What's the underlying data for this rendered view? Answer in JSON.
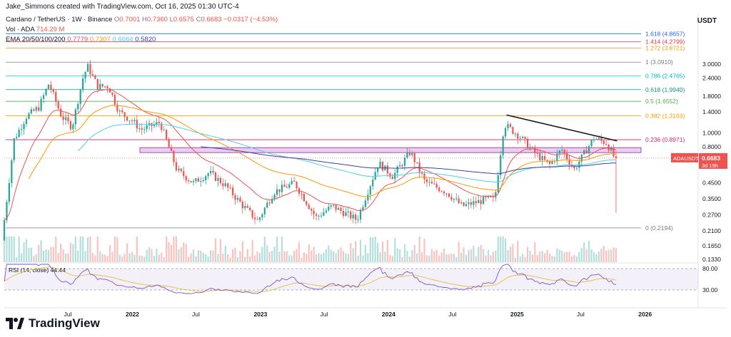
{
  "header": {
    "credit": "Jake_Simmons created with TradingView.com, Oct 16, 2025 01:30 UTC-4"
  },
  "legend": {
    "symbol": "Cardano / TetherUS · 1W · Binance",
    "open_label": "O",
    "open": "0.7001",
    "high_label": "H",
    "high": "0.7360",
    "low_label": "L",
    "low": "0.6575",
    "close_label": "C",
    "close": "0.6683",
    "change": "−0.0317 (−4.53%)",
    "vol_label": "Vol · ADA",
    "vol_value": "714.29 M",
    "ema_label": "EMA 20/50/100/200",
    "ema_values": [
      "0.7779",
      "0.7307",
      "0.6664",
      "0.5820"
    ]
  },
  "axis": {
    "currency": "USDT"
  },
  "branding": {
    "name": "TradingView"
  },
  "colors": {
    "up": "#26a69a",
    "down": "#ef5350",
    "ema20": "#ef5350",
    "ema50": "#ff9800",
    "ema100": "#4dd0e1",
    "ema200": "#3f3fa8",
    "fib0": "#787b86",
    "fib0236": "#e91e63",
    "fib0382": "#ff9800",
    "fib05": "#4caf50",
    "fib0618": "#089981",
    "fib0786": "#00bcd4",
    "fib1": "#787b86",
    "fib1272": "#ff9800",
    "fib1414": "#f23645",
    "fib1618": "#2962ff",
    "rsi": "#7e57c2",
    "rsi_ma": "#e0c040"
  },
  "chart_data": {
    "type": "candlestick",
    "y_scale": "log",
    "y_ticks": [
      "3.0000",
      "2.4000",
      "1.8000",
      "1.4000",
      "1.0000",
      "0.8000",
      "0.6000",
      "0.4500",
      "0.3500",
      "0.2700",
      "0.2100",
      "0.1650",
      "0.1330"
    ],
    "x_ticks": [
      "Jul",
      "2022",
      "Jul",
      "2023",
      "Jul",
      "2024",
      "Jul",
      "2025",
      "Jul",
      "2026"
    ],
    "fib_levels": [
      {
        "ratio": "0",
        "label": "0 (0.2194)",
        "price": 0.2194
      },
      {
        "ratio": "0.236",
        "label": "0.236 (0.8971)",
        "price": 0.8971
      },
      {
        "ratio": "0.382",
        "label": "0.382 (1.3163)",
        "price": 1.3163
      },
      {
        "ratio": "0.5",
        "label": "0.5 (1.6552)",
        "price": 1.6552
      },
      {
        "ratio": "0.618",
        "label": "0.618 (1.9940)",
        "price": 1.994
      },
      {
        "ratio": "0.786",
        "label": "0.786 (2.4765)",
        "price": 2.4765
      },
      {
        "ratio": "1",
        "label": "1 (3.0910)",
        "price": 3.091
      },
      {
        "ratio": "1.272",
        "label": "1.272 (3.8721)",
        "price": 3.8721
      },
      {
        "ratio": "1.414",
        "label": "1.414 (4.2799)",
        "price": 4.2799
      },
      {
        "ratio": "1.618",
        "label": "1.618 (4.8657)",
        "price": 4.8657
      }
    ],
    "support_zone": [
      0.73,
      0.79
    ],
    "trendline": [
      {
        "date": "2024-12-02",
        "price": 1.33
      },
      {
        "date": "2025-10-13",
        "price": 0.88
      }
    ],
    "last_price": {
      "symbol": "ADAUSDT",
      "price": "0.6683",
      "countdown": "3d 19h"
    },
    "rsi": {
      "label": "RSI (14, close)",
      "value": "44.44",
      "upper": "80.00",
      "lower": "30.00"
    },
    "price_path": [
      {
        "date": "2021-01-01",
        "price": 0.18
      },
      {
        "date": "2021-02-05",
        "price": 0.9
      },
      {
        "date": "2021-03-12",
        "price": 1.3
      },
      {
        "date": "2021-04-16",
        "price": 1.5
      },
      {
        "date": "2021-05-15",
        "price": 2.2
      },
      {
        "date": "2021-06-20",
        "price": 1.3
      },
      {
        "date": "2021-07-20",
        "price": 1.1
      },
      {
        "date": "2021-08-20",
        "price": 2.4
      },
      {
        "date": "2021-09-02",
        "price": 2.9
      },
      {
        "date": "2021-10-01",
        "price": 2.1
      },
      {
        "date": "2021-11-01",
        "price": 2.1
      },
      {
        "date": "2021-12-01",
        "price": 1.4
      },
      {
        "date": "2022-01-10",
        "price": 1.2
      },
      {
        "date": "2022-02-01",
        "price": 1.05
      },
      {
        "date": "2022-03-28",
        "price": 1.18
      },
      {
        "date": "2022-05-15",
        "price": 0.55
      },
      {
        "date": "2022-07-01",
        "price": 0.45
      },
      {
        "date": "2022-08-15",
        "price": 0.53
      },
      {
        "date": "2022-10-01",
        "price": 0.43
      },
      {
        "date": "2022-11-15",
        "price": 0.32
      },
      {
        "date": "2022-12-31",
        "price": 0.245
      },
      {
        "date": "2023-02-15",
        "price": 0.39
      },
      {
        "date": "2023-04-15",
        "price": 0.45
      },
      {
        "date": "2023-06-15",
        "price": 0.26
      },
      {
        "date": "2023-08-01",
        "price": 0.31
      },
      {
        "date": "2023-10-10",
        "price": 0.25
      },
      {
        "date": "2023-12-10",
        "price": 0.62
      },
      {
        "date": "2024-01-20",
        "price": 0.5
      },
      {
        "date": "2024-03-10",
        "price": 0.74
      },
      {
        "date": "2024-04-20",
        "price": 0.46
      },
      {
        "date": "2024-06-20",
        "price": 0.39
      },
      {
        "date": "2024-08-05",
        "price": 0.31
      },
      {
        "date": "2024-10-20",
        "price": 0.35
      },
      {
        "date": "2024-11-05",
        "price": 0.34
      },
      {
        "date": "2024-12-02",
        "price": 1.15
      },
      {
        "date": "2025-01-15",
        "price": 0.95
      },
      {
        "date": "2025-03-01",
        "price": 0.72
      },
      {
        "date": "2025-04-10",
        "price": 0.6
      },
      {
        "date": "2025-05-15",
        "price": 0.77
      },
      {
        "date": "2025-06-20",
        "price": 0.56
      },
      {
        "date": "2025-08-15",
        "price": 0.92
      },
      {
        "date": "2025-09-20",
        "price": 0.85
      },
      {
        "date": "2025-10-13",
        "price": 0.6683
      }
    ]
  }
}
